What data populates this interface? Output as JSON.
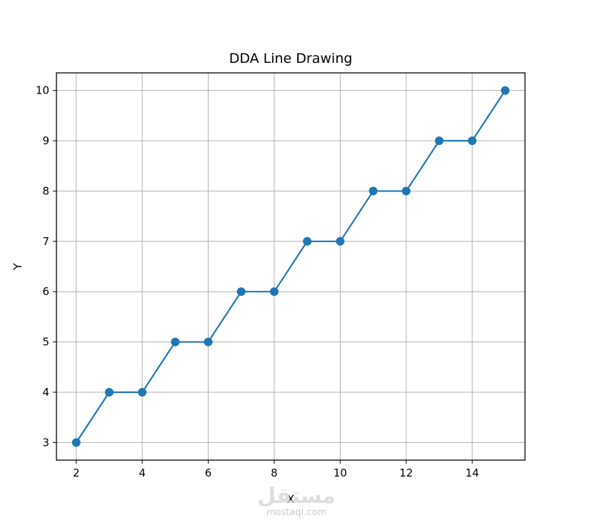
{
  "chart_data": {
    "type": "line",
    "title": "DDA Line Drawing",
    "xlabel": "X",
    "ylabel": "Y",
    "x": [
      2,
      3,
      4,
      5,
      6,
      7,
      8,
      9,
      10,
      11,
      12,
      13,
      14,
      15
    ],
    "y": [
      3,
      4,
      4,
      5,
      5,
      6,
      6,
      7,
      7,
      8,
      8,
      9,
      9,
      10
    ],
    "xlim": [
      1.4,
      15.6
    ],
    "ylim": [
      2.65,
      10.35
    ],
    "xticks": [
      2,
      4,
      6,
      8,
      10,
      12,
      14
    ],
    "yticks": [
      3,
      4,
      5,
      6,
      7,
      8,
      9,
      10
    ],
    "grid": true,
    "marker": "circle",
    "line_color": "#1f77b4",
    "grid_color": "#b0b0b0"
  },
  "watermark": {
    "logo_text": "مستقل",
    "site": "mostaql.com"
  }
}
